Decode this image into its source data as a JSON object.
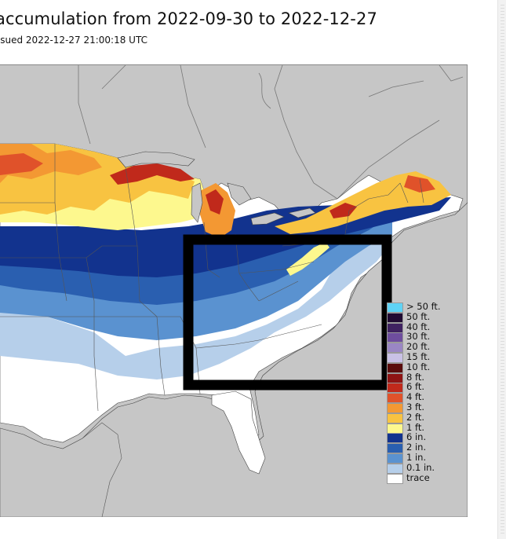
{
  "header": {
    "title": "accumulation from 2022-09-30 to 2022-12-27",
    "issued": "ssued 2022-12-27 21:00:18 UTC"
  },
  "colors": {
    "background_land_outside": "#c6c6c6",
    "no_snow": "#ffffff",
    "highlight_box": "#000000"
  },
  "legend": {
    "items": [
      {
        "label": "> 50 ft.",
        "color": "#5fd3f5"
      },
      {
        "label": "50 ft.",
        "color": "#200a33"
      },
      {
        "label": "40 ft.",
        "color": "#3f2261"
      },
      {
        "label": "30 ft.",
        "color": "#6e4d9e"
      },
      {
        "label": "20 ft.",
        "color": "#9a86c4"
      },
      {
        "label": "15 ft.",
        "color": "#c9c1e6"
      },
      {
        "label": "10 ft.",
        "color": "#5a0c0c"
      },
      {
        "label": "8 ft.",
        "color": "#8e1414"
      },
      {
        "label": "6 ft.",
        "color": "#c0291b"
      },
      {
        "label": "4 ft.",
        "color": "#e0522a"
      },
      {
        "label": "3 ft.",
        "color": "#f39833"
      },
      {
        "label": "2 ft.",
        "color": "#f8c341"
      },
      {
        "label": "1 ft.",
        "color": "#fdf88e"
      },
      {
        "label": "6 in.",
        "color": "#12338e"
      },
      {
        "label": "2 in.",
        "color": "#2a5fb0"
      },
      {
        "label": "1 in.",
        "color": "#5a92d0"
      },
      {
        "label": "0.1 in.",
        "color": "#b6cfea"
      },
      {
        "label": "trace",
        "color": "#ffffff"
      }
    ]
  }
}
